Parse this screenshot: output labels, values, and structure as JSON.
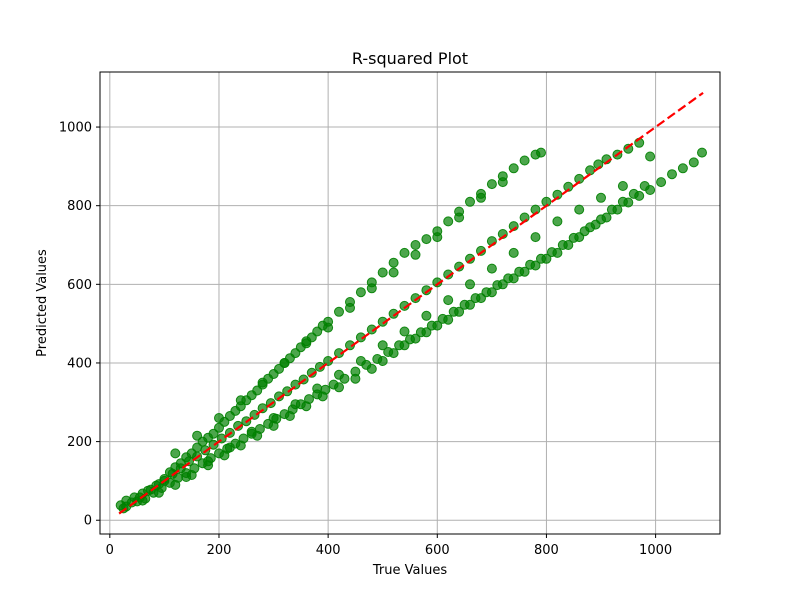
{
  "chart_data": {
    "type": "scatter",
    "title": "R-squared Plot",
    "xlabel": "True Values",
    "ylabel": "Predicted Values",
    "xlim": [
      -18,
      1118
    ],
    "ylim": [
      -35,
      1140
    ],
    "xticks": [
      0,
      200,
      400,
      600,
      800,
      1000
    ],
    "yticks": [
      0,
      200,
      400,
      600,
      800,
      1000
    ],
    "grid": true,
    "point_color": "#008000",
    "point_opacity": 0.7,
    "reference_line": {
      "x": [
        17,
        1087
      ],
      "y": [
        17,
        1087
      ],
      "color": "#ff0000",
      "style": "dashed"
    },
    "series": [
      {
        "points": [
          [
            20,
            38
          ],
          [
            30,
            50
          ],
          [
            45,
            58
          ],
          [
            60,
            68
          ],
          [
            75,
            78
          ],
          [
            90,
            92
          ],
          [
            100,
            105
          ],
          [
            110,
            122
          ],
          [
            120,
            135
          ],
          [
            130,
            145
          ],
          [
            140,
            160
          ],
          [
            150,
            170
          ],
          [
            160,
            185
          ],
          [
            170,
            200
          ],
          [
            180,
            210
          ],
          [
            190,
            220
          ],
          [
            200,
            235
          ],
          [
            210,
            250
          ],
          [
            220,
            265
          ],
          [
            230,
            278
          ],
          [
            240,
            290
          ],
          [
            250,
            305
          ],
          [
            260,
            318
          ],
          [
            270,
            330
          ],
          [
            280,
            345
          ],
          [
            290,
            360
          ],
          [
            300,
            372
          ],
          [
            310,
            385
          ],
          [
            320,
            400
          ],
          [
            330,
            412
          ],
          [
            340,
            425
          ],
          [
            350,
            440
          ],
          [
            360,
            455
          ],
          [
            370,
            465
          ],
          [
            380,
            480
          ],
          [
            390,
            495
          ],
          [
            400,
            505
          ],
          [
            420,
            530
          ],
          [
            440,
            555
          ],
          [
            460,
            580
          ],
          [
            480,
            605
          ],
          [
            500,
            630
          ],
          [
            520,
            655
          ],
          [
            540,
            680
          ],
          [
            560,
            700
          ],
          [
            580,
            715
          ],
          [
            600,
            735
          ],
          [
            620,
            760
          ],
          [
            640,
            785
          ],
          [
            660,
            810
          ],
          [
            680,
            830
          ],
          [
            700,
            855
          ],
          [
            720,
            875
          ],
          [
            740,
            895
          ],
          [
            760,
            915
          ],
          [
            780,
            930
          ],
          [
            790,
            935
          ]
        ]
      },
      {
        "points": [
          [
            25,
            30
          ],
          [
            40,
            45
          ],
          [
            55,
            58
          ],
          [
            70,
            75
          ],
          [
            85,
            88
          ],
          [
            100,
            100
          ],
          [
            115,
            118
          ],
          [
            130,
            132
          ],
          [
            145,
            150
          ],
          [
            160,
            162
          ],
          [
            175,
            178
          ],
          [
            190,
            192
          ],
          [
            205,
            208
          ],
          [
            220,
            222
          ],
          [
            235,
            240
          ],
          [
            250,
            252
          ],
          [
            265,
            268
          ],
          [
            280,
            285
          ],
          [
            295,
            298
          ],
          [
            310,
            315
          ],
          [
            325,
            328
          ],
          [
            340,
            345
          ],
          [
            355,
            358
          ],
          [
            370,
            375
          ],
          [
            385,
            390
          ],
          [
            400,
            405
          ],
          [
            420,
            425
          ],
          [
            440,
            445
          ],
          [
            460,
            465
          ],
          [
            480,
            485
          ],
          [
            500,
            505
          ],
          [
            520,
            525
          ],
          [
            540,
            545
          ],
          [
            560,
            565
          ],
          [
            580,
            585
          ],
          [
            600,
            605
          ],
          [
            620,
            625
          ],
          [
            640,
            645
          ],
          [
            660,
            665
          ],
          [
            680,
            685
          ],
          [
            700,
            710
          ],
          [
            720,
            728
          ],
          [
            740,
            748
          ],
          [
            760,
            770
          ],
          [
            780,
            790
          ],
          [
            800,
            810
          ],
          [
            820,
            828
          ],
          [
            840,
            848
          ],
          [
            860,
            868
          ],
          [
            880,
            890
          ],
          [
            895,
            905
          ],
          [
            910,
            918
          ],
          [
            930,
            930
          ],
          [
            950,
            945
          ],
          [
            970,
            960
          ],
          [
            990,
            925
          ]
        ]
      },
      {
        "points": [
          [
            30,
            35
          ],
          [
            50,
            48
          ],
          [
            65,
            55
          ],
          [
            80,
            70
          ],
          [
            95,
            82
          ],
          [
            110,
            95
          ],
          [
            125,
            108
          ],
          [
            140,
            120
          ],
          [
            155,
            132
          ],
          [
            170,
            145
          ],
          [
            185,
            158
          ],
          [
            200,
            170
          ],
          [
            215,
            182
          ],
          [
            230,
            195
          ],
          [
            245,
            208
          ],
          [
            260,
            220
          ],
          [
            275,
            232
          ],
          [
            290,
            245
          ],
          [
            305,
            258
          ],
          [
            320,
            270
          ],
          [
            335,
            282
          ],
          [
            350,
            295
          ],
          [
            365,
            308
          ],
          [
            380,
            320
          ],
          [
            395,
            332
          ],
          [
            410,
            345
          ],
          [
            430,
            360
          ],
          [
            450,
            378
          ],
          [
            470,
            395
          ],
          [
            490,
            410
          ],
          [
            510,
            428
          ],
          [
            530,
            445
          ],
          [
            550,
            460
          ],
          [
            570,
            478
          ],
          [
            590,
            495
          ],
          [
            610,
            512
          ],
          [
            630,
            530
          ],
          [
            650,
            548
          ],
          [
            670,
            565
          ],
          [
            690,
            580
          ],
          [
            710,
            598
          ],
          [
            730,
            615
          ],
          [
            750,
            632
          ],
          [
            770,
            650
          ],
          [
            790,
            665
          ],
          [
            810,
            682
          ],
          [
            830,
            700
          ],
          [
            850,
            718
          ],
          [
            870,
            735
          ],
          [
            890,
            752
          ],
          [
            910,
            770
          ],
          [
            930,
            790
          ],
          [
            950,
            808
          ],
          [
            970,
            825
          ],
          [
            990,
            840
          ],
          [
            1010,
            860
          ],
          [
            1030,
            880
          ],
          [
            1050,
            895
          ],
          [
            1070,
            910
          ],
          [
            1085,
            935
          ]
        ]
      },
      {
        "points": [
          [
            60,
            50
          ],
          [
            90,
            70
          ],
          [
            120,
            90
          ],
          [
            150,
            115
          ],
          [
            180,
            140
          ],
          [
            210,
            165
          ],
          [
            240,
            190
          ],
          [
            270,
            215
          ],
          [
            300,
            240
          ],
          [
            330,
            265
          ],
          [
            360,
            290
          ],
          [
            390,
            315
          ],
          [
            420,
            338
          ],
          [
            450,
            360
          ],
          [
            480,
            385
          ],
          [
            500,
            405
          ],
          [
            520,
            425
          ],
          [
            540,
            445
          ],
          [
            560,
            462
          ],
          [
            580,
            478
          ],
          [
            600,
            495
          ],
          [
            620,
            510
          ],
          [
            640,
            530
          ],
          [
            660,
            548
          ],
          [
            680,
            565
          ],
          [
            700,
            580
          ],
          [
            720,
            600
          ],
          [
            740,
            615
          ],
          [
            760,
            632
          ],
          [
            780,
            648
          ],
          [
            800,
            665
          ],
          [
            820,
            680
          ],
          [
            840,
            700
          ],
          [
            860,
            720
          ],
          [
            880,
            745
          ],
          [
            900,
            765
          ],
          [
            920,
            790
          ],
          [
            940,
            810
          ],
          [
            960,
            830
          ],
          [
            980,
            850
          ]
        ]
      },
      {
        "points": [
          [
            120,
            170
          ],
          [
            160,
            215
          ],
          [
            200,
            260
          ],
          [
            240,
            305
          ],
          [
            280,
            350
          ],
          [
            320,
            400
          ],
          [
            360,
            450
          ],
          [
            400,
            490
          ],
          [
            440,
            540
          ],
          [
            480,
            590
          ],
          [
            520,
            630
          ],
          [
            560,
            675
          ],
          [
            600,
            720
          ],
          [
            640,
            770
          ],
          [
            680,
            820
          ],
          [
            720,
            860
          ]
        ]
      },
      {
        "points": [
          [
            140,
            110
          ],
          [
            180,
            150
          ],
          [
            220,
            185
          ],
          [
            260,
            225
          ],
          [
            300,
            260
          ],
          [
            340,
            295
          ],
          [
            380,
            335
          ],
          [
            420,
            370
          ],
          [
            460,
            405
          ],
          [
            500,
            445
          ],
          [
            540,
            480
          ],
          [
            580,
            520
          ],
          [
            620,
            560
          ],
          [
            660,
            600
          ],
          [
            700,
            640
          ],
          [
            740,
            680
          ],
          [
            780,
            720
          ],
          [
            820,
            760
          ],
          [
            860,
            790
          ],
          [
            900,
            820
          ],
          [
            940,
            850
          ]
        ]
      }
    ]
  }
}
